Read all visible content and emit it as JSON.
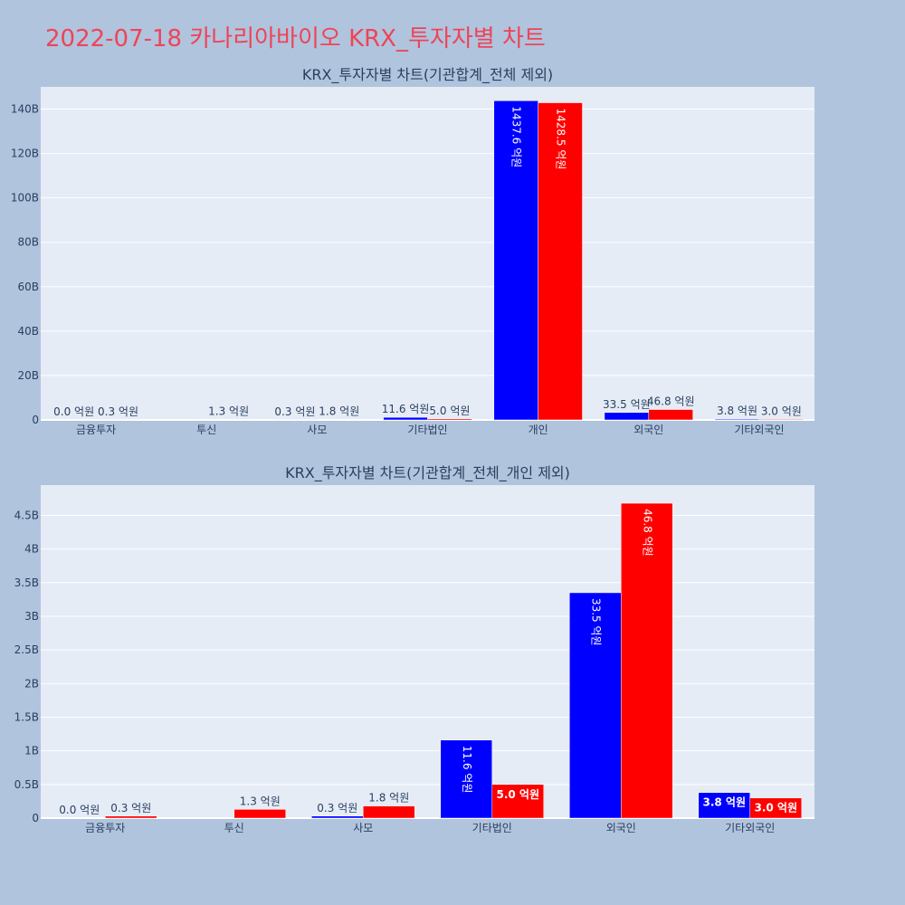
{
  "page_title": "2022-07-18 카나리아바이오 KRX_투자자별 차트",
  "colors": {
    "series_a": "#0000ff",
    "series_b": "#ff0000",
    "title": "#ef4456",
    "background": "#b0c4de",
    "plot_bg": "#e5ecf6"
  },
  "chart_data": [
    {
      "type": "bar",
      "title": "KRX_투자자별 차트(기관합계_전체 제외)",
      "categories": [
        "금융투자",
        "투신",
        "사모",
        "기타법인",
        "개인",
        "외국인",
        "기타외국인"
      ],
      "ylim": [
        0,
        150000000000
      ],
      "yticks": [
        0,
        20000000000,
        40000000000,
        60000000000,
        80000000000,
        100000000000,
        120000000000,
        140000000000
      ],
      "ytick_labels": [
        "0",
        "20B",
        "40B",
        "60B",
        "80B",
        "100B",
        "120B",
        "140B"
      ],
      "grid": true,
      "series": [
        {
          "values": [
            0,
            null,
            30000000,
            1160000000,
            143760000000,
            3350000000,
            380000000
          ],
          "labels": [
            "0.0 억원",
            "",
            "0.3 억원",
            "11.6 억원",
            "1437.6 억원",
            "33.5 억원",
            "3.8 억원"
          ]
        },
        {
          "values": [
            30000000,
            130000000,
            180000000,
            500000000,
            142850000000,
            4680000000,
            300000000
          ],
          "labels": [
            "0.3 억원",
            "1.3 억원",
            "1.8 억원",
            "5.0 억원",
            "1428.5 억원",
            "46.8 억원",
            "3.0 억원"
          ]
        }
      ]
    },
    {
      "type": "bar",
      "title": "KRX_투자자별 차트(기관합계_전체_개인 제외)",
      "categories": [
        "금융투자",
        "투신",
        "사모",
        "기타법인",
        "외국인",
        "기타외국인"
      ],
      "ylim": [
        0,
        4950000000
      ],
      "yticks": [
        0,
        500000000,
        1000000000,
        1500000000,
        2000000000,
        2500000000,
        3000000000,
        3500000000,
        4000000000,
        4500000000
      ],
      "ytick_labels": [
        "0",
        "0.5B",
        "1B",
        "1.5B",
        "2B",
        "2.5B",
        "3B",
        "3.5B",
        "4B",
        "4.5B"
      ],
      "grid": true,
      "series": [
        {
          "values": [
            0,
            null,
            30000000,
            1160000000,
            3350000000,
            380000000
          ],
          "labels": [
            "0.0 억원",
            "",
            "0.3 억원",
            "11.6 억원",
            "33.5 억원",
            "3.8 억원"
          ]
        },
        {
          "values": [
            30000000,
            130000000,
            180000000,
            500000000,
            4680000000,
            300000000
          ],
          "labels": [
            "0.3 억원",
            "1.3 억원",
            "1.8 억원",
            "5.0 억원",
            "46.8 억원",
            "3.0 억원"
          ]
        }
      ]
    }
  ]
}
